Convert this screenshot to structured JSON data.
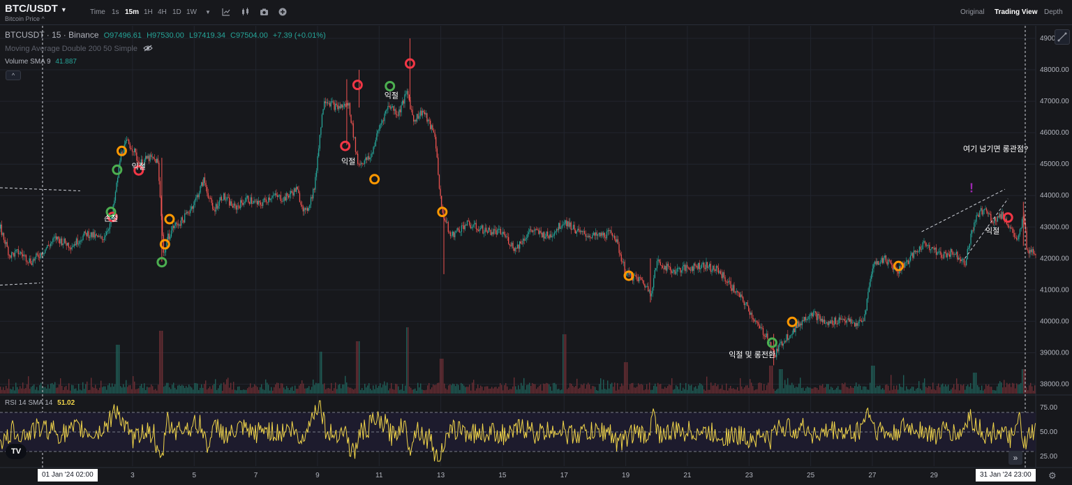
{
  "header": {
    "symbol": "BTC/USDT",
    "subtitle": "Bitcoin Price ^",
    "time_label": "Time",
    "intervals": [
      "1s",
      "15m",
      "1H",
      "4H",
      "1D",
      "1W"
    ],
    "active_interval": "15m",
    "views": [
      "Original",
      "Trading View",
      "Depth"
    ],
    "active_view": "Trading View"
  },
  "legend": {
    "title": "BTCUSDT · 15 · Binance",
    "open": "O97496.61",
    "high": "H97530.00",
    "low": "L97419.34",
    "close": "C97504.00",
    "change": "+7.39 (+0.01%)",
    "ma_label": "Moving Average Double 200 50 Simple",
    "volume_label": "Volume SMA 9",
    "volume_value": "41.887",
    "rsi_label": "RSI 14 SMA 14",
    "rsi_value": "51.02"
  },
  "crosshair": {
    "left_date": "01 Jan '24   02:00",
    "right_date": "31 Jan '24   23:00"
  },
  "annotations": [
    {
      "text": "익절",
      "day": 3.2,
      "price": 44850
    },
    {
      "text": "손절",
      "day": 2.3,
      "price": 43200
    },
    {
      "text": "익절",
      "day": 10.0,
      "price": 45000
    },
    {
      "text": "익절",
      "day": 11.4,
      "price": 47100
    },
    {
      "text": "익절 및 롱전환",
      "day": 23.1,
      "price": 38850
    },
    {
      "text": "여기 넘기면 롱관점?",
      "day": 31.0,
      "price": 45400
    },
    {
      "text": "익절",
      "day": 30.9,
      "price": 42800
    }
  ],
  "markers": [
    {
      "color": "#f23645",
      "day": 2.35,
      "price": 43320
    },
    {
      "color": "#4caf50",
      "day": 2.3,
      "price": 43480
    },
    {
      "color": "#4caf50",
      "day": 2.5,
      "price": 44820
    },
    {
      "color": "#ff9800",
      "day": 2.65,
      "price": 45420
    },
    {
      "color": "#f23645",
      "day": 3.2,
      "price": 44800
    },
    {
      "color": "#ff9800",
      "day": 4.2,
      "price": 43250
    },
    {
      "color": "#ff9800",
      "day": 4.05,
      "price": 42450
    },
    {
      "color": "#4caf50",
      "day": 3.95,
      "price": 41880
    },
    {
      "color": "#f23645",
      "day": 9.9,
      "price": 45580
    },
    {
      "color": "#f23645",
      "day": 10.3,
      "price": 47520
    },
    {
      "color": "#ff9800",
      "day": 10.85,
      "price": 44520
    },
    {
      "color": "#4caf50",
      "day": 11.35,
      "price": 47480
    },
    {
      "color": "#f23645",
      "day": 12.0,
      "price": 48200
    },
    {
      "color": "#ff9800",
      "day": 13.05,
      "price": 43480
    },
    {
      "color": "#ff9800",
      "day": 19.1,
      "price": 41450
    },
    {
      "color": "#4caf50",
      "day": 23.75,
      "price": 39320
    },
    {
      "color": "#ff9800",
      "day": 24.4,
      "price": 39980
    },
    {
      "color": "#ff9800",
      "day": 27.85,
      "price": 41760
    },
    {
      "color": "#f23645",
      "day": 31.4,
      "price": 43300
    }
  ],
  "colors": {
    "up": "#26a69a",
    "down": "#ef5350",
    "rsi": "#f2d64a",
    "exclaim": "#9c27b0"
  },
  "chart_data": {
    "type": "candlestick",
    "title": "BTCUSDT · 15 · Binance",
    "x_unit": "day of January 2024",
    "xlim": [
      -1.3,
      32.3
    ],
    "ylim": [
      37700,
      49400
    ],
    "x_ticks": [
      3,
      5,
      7,
      9,
      11,
      13,
      15,
      17,
      19,
      21,
      23,
      25,
      27,
      29
    ],
    "y_ticks": [
      38000,
      39000,
      40000,
      41000,
      42000,
      43000,
      44000,
      45000,
      46000,
      47000,
      48000,
      49000
    ],
    "rsi_ticks": [
      25,
      50,
      75
    ],
    "rsi_range": [
      15,
      85
    ],
    "rsi_band": [
      30,
      70
    ],
    "price_path": [
      [
        -1.3,
        42950
      ],
      [
        -1.0,
        42100
      ],
      [
        -0.7,
        42200
      ],
      [
        -0.3,
        41900
      ],
      [
        0.0,
        42150
      ],
      [
        0.5,
        42650
      ],
      [
        1.0,
        42400
      ],
      [
        1.5,
        42800
      ],
      [
        2.0,
        42600
      ],
      [
        2.3,
        43200
      ],
      [
        2.45,
        44200
      ],
      [
        2.6,
        45300
      ],
      [
        2.8,
        45700
      ],
      [
        3.0,
        45500
      ],
      [
        3.2,
        45000
      ],
      [
        3.5,
        45200
      ],
      [
        3.8,
        45100
      ],
      [
        3.95,
        42900
      ],
      [
        4.0,
        42000
      ],
      [
        4.1,
        42600
      ],
      [
        4.3,
        43000
      ],
      [
        4.6,
        43200
      ],
      [
        5.0,
        43800
      ],
      [
        5.3,
        44500
      ],
      [
        5.6,
        43500
      ],
      [
        5.9,
        44000
      ],
      [
        6.3,
        43600
      ],
      [
        6.7,
        43900
      ],
      [
        7.1,
        43700
      ],
      [
        7.5,
        44000
      ],
      [
        7.9,
        43900
      ],
      [
        8.3,
        44200
      ],
      [
        8.6,
        43400
      ],
      [
        8.9,
        44300
      ],
      [
        9.0,
        45400
      ],
      [
        9.2,
        47100
      ],
      [
        9.6,
        46800
      ],
      [
        10.0,
        46900
      ],
      [
        10.3,
        45000
      ],
      [
        10.7,
        45200
      ],
      [
        11.0,
        46200
      ],
      [
        11.3,
        46900
      ],
      [
        11.6,
        46600
      ],
      [
        11.9,
        47300
      ],
      [
        12.1,
        46400
      ],
      [
        12.4,
        46700
      ],
      [
        12.8,
        45900
      ],
      [
        13.0,
        43600
      ],
      [
        13.3,
        42700
      ],
      [
        13.8,
        43100
      ],
      [
        14.4,
        42900
      ],
      [
        15.0,
        42800
      ],
      [
        15.4,
        42300
      ],
      [
        15.9,
        42900
      ],
      [
        16.5,
        42700
      ],
      [
        17.0,
        43200
      ],
      [
        17.5,
        42800
      ],
      [
        18.0,
        42700
      ],
      [
        18.6,
        42800
      ],
      [
        19.0,
        41500
      ],
      [
        19.5,
        41300
      ],
      [
        19.8,
        40900
      ],
      [
        20.0,
        41900
      ],
      [
        20.5,
        41600
      ],
      [
        21.0,
        41700
      ],
      [
        21.5,
        41800
      ],
      [
        22.0,
        41600
      ],
      [
        22.5,
        41000
      ],
      [
        22.9,
        40500
      ],
      [
        23.3,
        39800
      ],
      [
        23.6,
        39500
      ],
      [
        23.8,
        38900
      ],
      [
        24.1,
        39400
      ],
      [
        24.5,
        39800
      ],
      [
        25.0,
        40300
      ],
      [
        25.5,
        39900
      ],
      [
        26.0,
        40100
      ],
      [
        26.4,
        39900
      ],
      [
        26.7,
        40000
      ],
      [
        27.0,
        41800
      ],
      [
        27.4,
        42000
      ],
      [
        27.8,
        41600
      ],
      [
        28.3,
        42100
      ],
      [
        28.7,
        42500
      ],
      [
        29.2,
        42100
      ],
      [
        29.6,
        42200
      ],
      [
        30.0,
        41900
      ],
      [
        30.3,
        43200
      ],
      [
        30.6,
        43600
      ],
      [
        30.9,
        43200
      ],
      [
        31.2,
        43400
      ],
      [
        31.5,
        42900
      ],
      [
        31.7,
        42500
      ],
      [
        31.9,
        43400
      ],
      [
        32.0,
        42300
      ],
      [
        32.3,
        42200
      ]
    ],
    "volume_spikes": [
      [
        2.5,
        0.7
      ],
      [
        3.9,
        0.9
      ],
      [
        9.1,
        0.6
      ],
      [
        10.3,
        0.75
      ],
      [
        11.9,
        0.95
      ],
      [
        13.0,
        0.5
      ],
      [
        17.0,
        0.85
      ],
      [
        19.0,
        0.45
      ],
      [
        23.7,
        0.4
      ],
      [
        24.0,
        0.35
      ],
      [
        27.0,
        0.4
      ],
      [
        30.3,
        0.3
      ],
      [
        31.9,
        0.35
      ]
    ],
    "trendlines": [
      [
        [
          -1.3,
          44250
        ],
        [
          1.3,
          44150
        ]
      ],
      [
        [
          -1.3,
          41150
        ],
        [
          0.0,
          41220
        ]
      ],
      [
        [
          28.6,
          42850
        ],
        [
          31.3,
          44200
        ]
      ],
      [
        [
          30.0,
          42000
        ],
        [
          31.4,
          43900
        ]
      ]
    ]
  }
}
